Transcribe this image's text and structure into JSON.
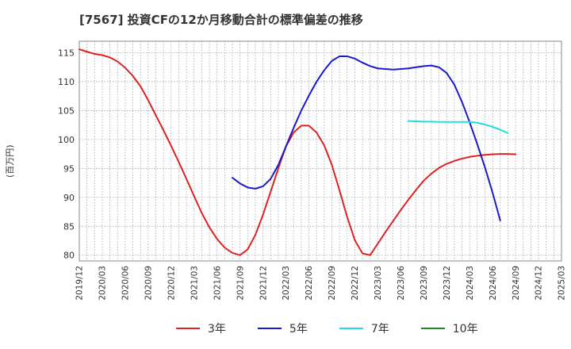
{
  "header": {
    "title": "[7567]  投資CFの12か月移動合計の標準偏差の推移"
  },
  "chart_data": {
    "type": "line",
    "title": "[7567]  投資CFの12か月移動合計の標準偏差の推移",
    "ylabel": "(百万円)",
    "xlabel": "",
    "ylim": [
      79,
      117
    ],
    "yticks": [
      80,
      85,
      90,
      95,
      100,
      105,
      110,
      115
    ],
    "xlim": [
      "2019-12",
      "2025-03"
    ],
    "xticks": [
      "2019/12",
      "2020/03",
      "2020/06",
      "2020/09",
      "2020/12",
      "2021/03",
      "2021/06",
      "2021/09",
      "2021/12",
      "2022/03",
      "2022/06",
      "2022/09",
      "2022/12",
      "2023/03",
      "2023/06",
      "2023/09",
      "2023/12",
      "2024/03",
      "2024/06",
      "2024/09",
      "2024/12",
      "2025/03"
    ],
    "grid": true,
    "legend_position": "bottom",
    "series": [
      {
        "name": "3年",
        "color": "#dd2222",
        "points": [
          [
            "2019-12",
            115.6
          ],
          [
            "2020-01",
            115.2
          ],
          [
            "2020-02",
            114.8
          ],
          [
            "2020-03",
            114.6
          ],
          [
            "2020-04",
            114.2
          ],
          [
            "2020-05",
            113.5
          ],
          [
            "2020-06",
            112.4
          ],
          [
            "2020-07",
            111.0
          ],
          [
            "2020-08",
            109.2
          ],
          [
            "2020-09",
            106.8
          ],
          [
            "2020-10",
            104.2
          ],
          [
            "2020-11",
            101.6
          ],
          [
            "2020-12",
            98.9
          ],
          [
            "2021-01",
            96.1
          ],
          [
            "2021-02",
            93.2
          ],
          [
            "2021-03",
            90.2
          ],
          [
            "2021-04",
            87.3
          ],
          [
            "2021-05",
            84.8
          ],
          [
            "2021-06",
            82.8
          ],
          [
            "2021-07",
            81.3
          ],
          [
            "2021-08",
            80.4
          ],
          [
            "2021-09",
            80.0
          ],
          [
            "2021-10",
            81.0
          ],
          [
            "2021-11",
            83.5
          ],
          [
            "2021-12",
            87.0
          ],
          [
            "2022-01",
            91.0
          ],
          [
            "2022-02",
            95.0
          ],
          [
            "2022-03",
            98.8
          ],
          [
            "2022-04",
            101.2
          ],
          [
            "2022-05",
            102.4
          ],
          [
            "2022-06",
            102.4
          ],
          [
            "2022-07",
            101.2
          ],
          [
            "2022-08",
            99.0
          ],
          [
            "2022-09",
            95.6
          ],
          [
            "2022-10",
            91.2
          ],
          [
            "2022-11",
            86.6
          ],
          [
            "2022-12",
            82.6
          ],
          [
            "2023-01",
            80.3
          ],
          [
            "2023-02",
            80.0
          ],
          [
            "2023-03",
            82.0
          ],
          [
            "2023-04",
            84.0
          ],
          [
            "2023-05",
            85.9
          ],
          [
            "2023-06",
            87.8
          ],
          [
            "2023-07",
            89.6
          ],
          [
            "2023-08",
            91.3
          ],
          [
            "2023-09",
            92.9
          ],
          [
            "2023-10",
            94.1
          ],
          [
            "2023-11",
            95.1
          ],
          [
            "2023-12",
            95.8
          ],
          [
            "2024-01",
            96.3
          ],
          [
            "2024-02",
            96.7
          ],
          [
            "2024-03",
            97.0
          ],
          [
            "2024-04",
            97.2
          ],
          [
            "2024-05",
            97.35
          ],
          [
            "2024-06",
            97.45
          ],
          [
            "2024-07",
            97.5
          ],
          [
            "2024-08",
            97.5
          ],
          [
            "2024-09",
            97.45
          ]
        ]
      },
      {
        "name": "5年",
        "color": "#1a1acc",
        "points": [
          [
            "2021-08",
            93.4
          ],
          [
            "2021-09",
            92.4
          ],
          [
            "2021-10",
            91.7
          ],
          [
            "2021-11",
            91.5
          ],
          [
            "2021-12",
            91.9
          ],
          [
            "2022-01",
            93.2
          ],
          [
            "2022-02",
            95.6
          ],
          [
            "2022-03",
            98.8
          ],
          [
            "2022-04",
            102.0
          ],
          [
            "2022-05",
            105.0
          ],
          [
            "2022-06",
            107.6
          ],
          [
            "2022-07",
            110.0
          ],
          [
            "2022-08",
            112.0
          ],
          [
            "2022-09",
            113.6
          ],
          [
            "2022-10",
            114.4
          ],
          [
            "2022-11",
            114.4
          ],
          [
            "2022-12",
            114.0
          ],
          [
            "2023-01",
            113.3
          ],
          [
            "2023-02",
            112.7
          ],
          [
            "2023-03",
            112.3
          ],
          [
            "2023-04",
            112.2
          ],
          [
            "2023-05",
            112.1
          ],
          [
            "2023-06",
            112.2
          ],
          [
            "2023-07",
            112.3
          ],
          [
            "2023-08",
            112.5
          ],
          [
            "2023-09",
            112.7
          ],
          [
            "2023-10",
            112.8
          ],
          [
            "2023-11",
            112.5
          ],
          [
            "2023-12",
            111.5
          ],
          [
            "2024-01",
            109.5
          ],
          [
            "2024-02",
            106.5
          ],
          [
            "2024-03",
            103.0
          ],
          [
            "2024-04",
            99.2
          ],
          [
            "2024-05",
            95.2
          ],
          [
            "2024-06",
            90.8
          ],
          [
            "2024-07",
            86.0
          ]
        ]
      },
      {
        "name": "7年",
        "color": "#22dddd",
        "points": [
          [
            "2023-07",
            103.2
          ],
          [
            "2023-08",
            103.15
          ],
          [
            "2023-09",
            103.1
          ],
          [
            "2023-10",
            103.1
          ],
          [
            "2023-11",
            103.05
          ],
          [
            "2023-12",
            103.05
          ],
          [
            "2024-01",
            103.05
          ],
          [
            "2024-02",
            103.05
          ],
          [
            "2024-03",
            103.05
          ],
          [
            "2024-04",
            102.9
          ],
          [
            "2024-05",
            102.6
          ],
          [
            "2024-06",
            102.2
          ],
          [
            "2024-07",
            101.7
          ],
          [
            "2024-08",
            101.1
          ]
        ]
      },
      {
        "name": "10年",
        "color": "#228822",
        "points": []
      }
    ]
  }
}
